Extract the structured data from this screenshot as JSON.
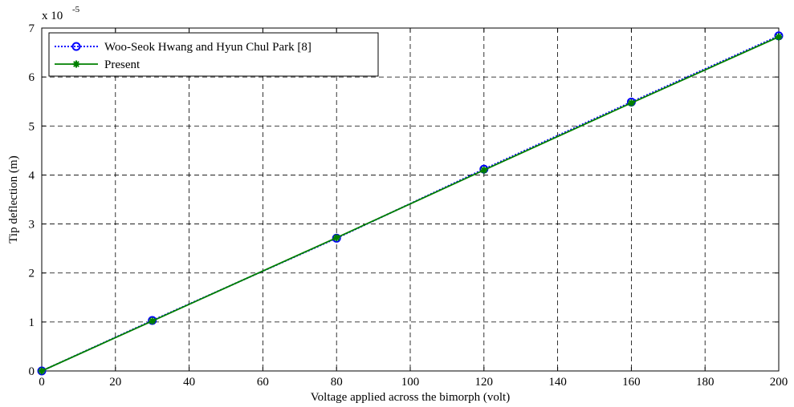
{
  "chart_data": {
    "type": "line",
    "title": "",
    "xlabel": "Voltage applied across the bimorph (volt)",
    "ylabel": "Tip deflection (m)",
    "y_exponent": {
      "base": "x 10",
      "power": "-5"
    },
    "xlim": [
      0,
      200
    ],
    "ylim": [
      0,
      7
    ],
    "x_ticks": [
      0,
      20,
      40,
      60,
      80,
      100,
      120,
      140,
      160,
      180,
      200
    ],
    "y_ticks": [
      0,
      1,
      2,
      3,
      4,
      5,
      6,
      7
    ],
    "grid": true,
    "legend_position": "top-left",
    "series": [
      {
        "name": "Woo-Seok Hwang and Hyun Chul Park [8]",
        "color": "#0000ff",
        "line_style": "dotted",
        "marker": "circle",
        "x": [
          0,
          30,
          80,
          120,
          160,
          200
        ],
        "y": [
          0,
          1.03,
          2.71,
          4.12,
          5.49,
          6.84
        ]
      },
      {
        "name": "Present",
        "color": "#008000",
        "line_style": "solid",
        "marker": "star",
        "x": [
          0,
          30,
          80,
          120,
          160,
          200
        ],
        "y": [
          0,
          1.02,
          2.72,
          4.1,
          5.47,
          6.82
        ]
      }
    ]
  }
}
